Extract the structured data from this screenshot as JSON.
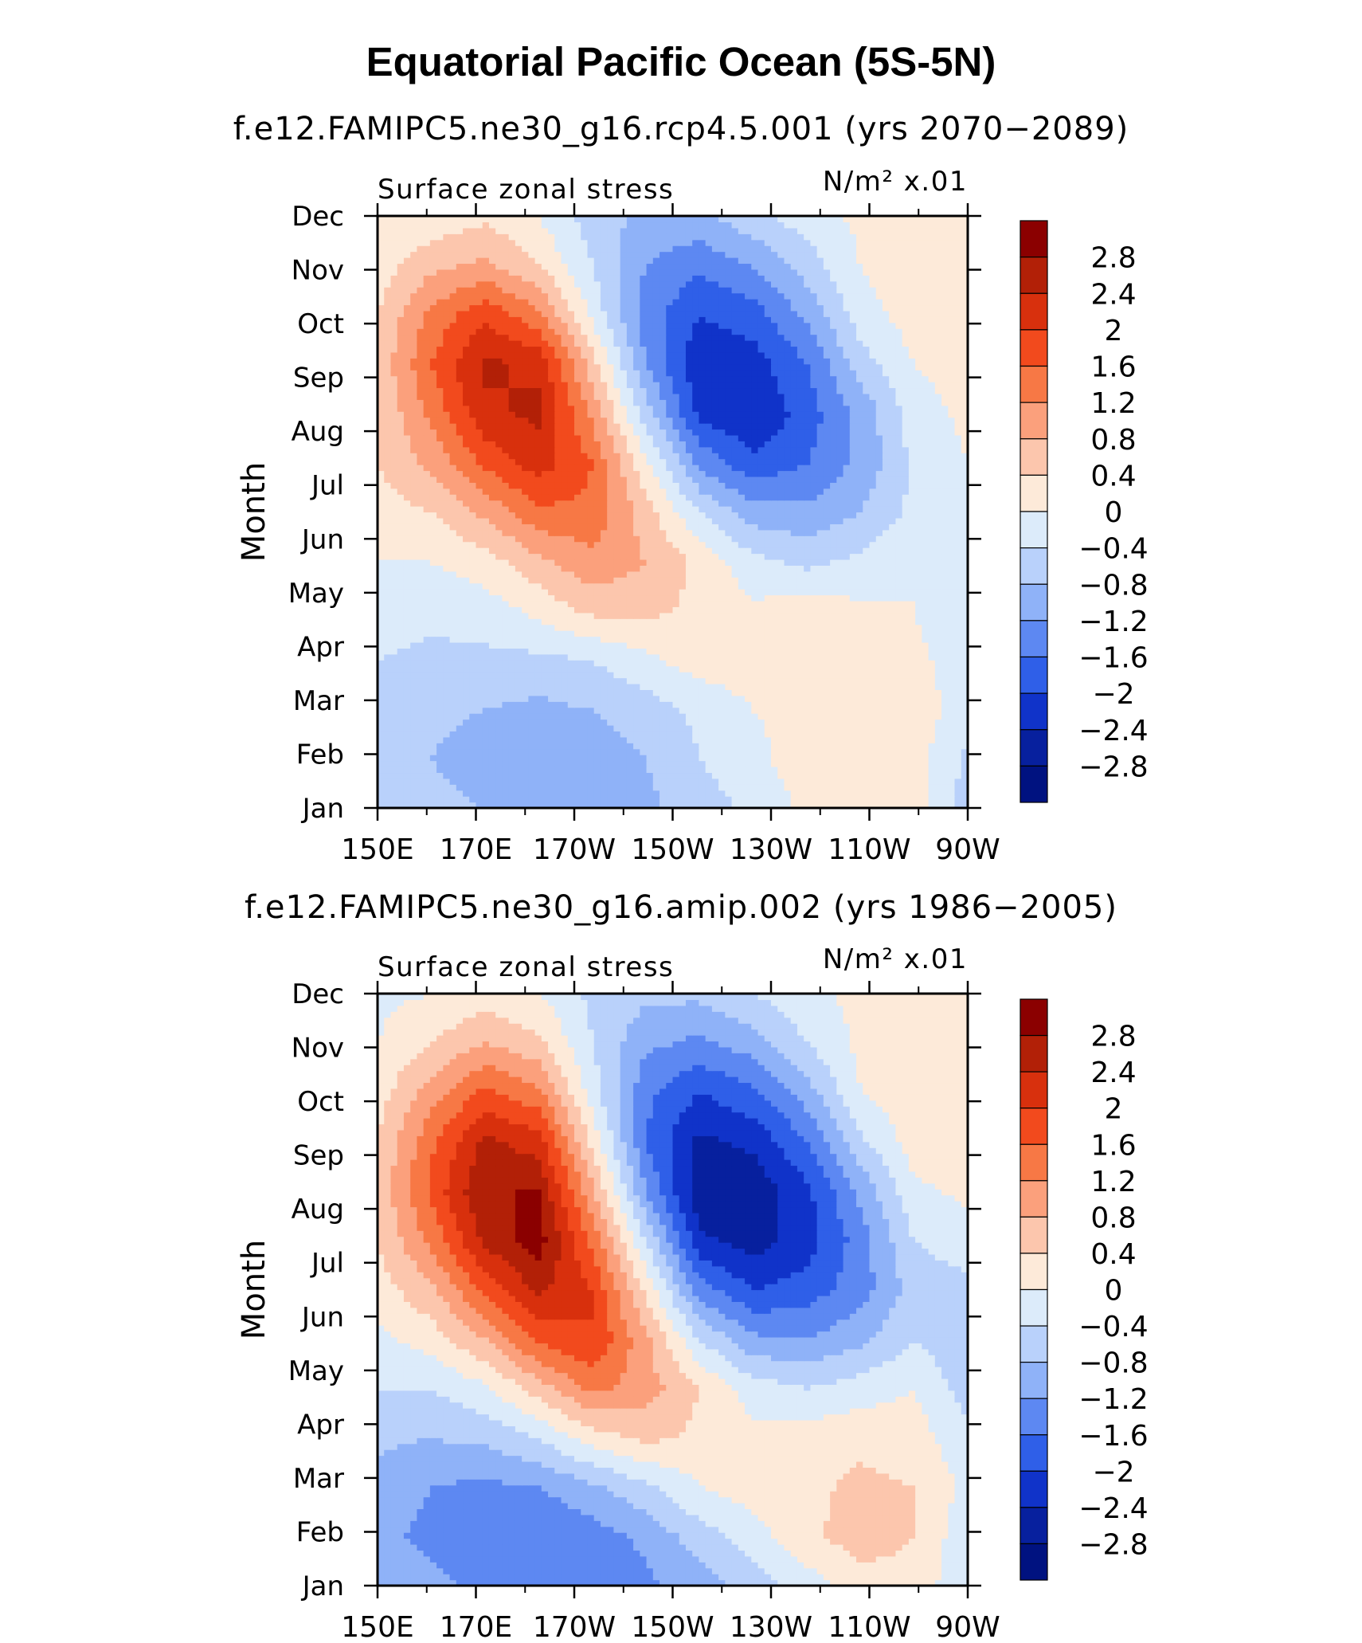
{
  "figure": {
    "title": "Equatorial Pacific Ocean (5S-5N)"
  },
  "chart_data": [
    {
      "type": "heatmap",
      "title": "f.e12.FAMIPC5.ne30_g16.rcp4.5.001 (yrs 2070−2089)",
      "left_label": "Surface zonal stress",
      "right_label": "N/m² x.01",
      "xlabel": "",
      "ylabel": "Month",
      "x": [
        "150E",
        "170E",
        "170W",
        "150W",
        "130W",
        "110W",
        "90W"
      ],
      "y": [
        "Jan",
        "Feb",
        "Mar",
        "Apr",
        "May",
        "Jun",
        "Jul",
        "Aug",
        "Sep",
        "Oct",
        "Nov",
        "Dec"
      ],
      "grid": false,
      "colorbar_ticks": [
        "2.8",
        "2.4",
        "2",
        "1.6",
        "1.2",
        "0.8",
        "0.4",
        "0",
        "−0.4",
        "−0.8",
        "−1.2",
        "−1.6",
        "−2",
        "−2.4",
        "−2.8"
      ],
      "colorbar_colors": [
        "#8b0000",
        "#b22007",
        "#d8300d",
        "#f24a1d",
        "#f77845",
        "#fba07c",
        "#fcc6ad",
        "#fdead9",
        "#dcebfa",
        "#b9d1fb",
        "#8fb2f8",
        "#5d88f2",
        "#2f5fe8",
        "#1033c9",
        "#07209e",
        "#001280"
      ],
      "values": [
        [
          -0.5,
          -0.7,
          -0.8,
          -1.0,
          -1.2,
          -0.9,
          -0.6,
          -0.3,
          0.1,
          0.4,
          0.2,
          -0.6
        ],
        [
          -0.6,
          -0.8,
          -1.0,
          -1.1,
          -1.0,
          -0.8,
          -0.4,
          -0.1,
          0.2,
          0.4,
          0.2,
          -0.5
        ],
        [
          -0.6,
          -0.7,
          -0.8,
          -0.9,
          -0.8,
          -0.6,
          -0.3,
          0.0,
          0.1,
          0.3,
          0.2,
          -0.2
        ],
        [
          -0.4,
          -0.5,
          -0.5,
          -0.5,
          -0.4,
          -0.1,
          0.2,
          0.2,
          0.0,
          0.1,
          0.1,
          -0.2
        ],
        [
          -0.2,
          -0.3,
          -0.2,
          0.1,
          0.5,
          0.5,
          0.3,
          0.1,
          0.2,
          0.1,
          0.0,
          -0.3
        ],
        [
          0.0,
          0.0,
          0.2,
          0.7,
          1.1,
          0.8,
          0.3,
          -0.3,
          -0.5,
          -0.3,
          0.0,
          -0.3
        ],
        [
          0.2,
          0.4,
          0.9,
          1.5,
          1.5,
          0.6,
          -0.4,
          -1.0,
          -1.1,
          -0.8,
          -0.3,
          -0.2
        ],
        [
          0.4,
          0.9,
          1.7,
          2.2,
          1.6,
          0.1,
          -1.3,
          -1.9,
          -1.6,
          -1.1,
          -0.3,
          0.0
        ],
        [
          0.4,
          1.3,
          2.3,
          2.5,
          1.1,
          -0.6,
          -2.1,
          -2.4,
          -1.8,
          -1.1,
          -0.2,
          0.1
        ],
        [
          0.5,
          1.6,
          2.5,
          2.3,
          0.6,
          -1.2,
          -2.3,
          -2.2,
          -1.6,
          -0.6,
          0.0,
          0.2
        ],
        [
          0.4,
          1.3,
          1.9,
          1.3,
          -0.1,
          -1.4,
          -2.0,
          -1.8,
          -1.1,
          -0.2,
          0.2,
          0.4
        ],
        [
          0.2,
          0.7,
          0.9,
          0.4,
          -0.4,
          -1.2,
          -1.5,
          -1.2,
          -0.6,
          0.0,
          0.3,
          0.4
        ],
        [
          0.0,
          0.1,
          0.3,
          0.0,
          -0.6,
          -0.9,
          -0.9,
          -0.5,
          -0.2,
          0.1,
          0.3,
          0.3
        ]
      ]
    },
    {
      "type": "heatmap",
      "title": "f.e12.FAMIPC5.ne30_g16.amip.002 (yrs 1986−2005)",
      "left_label": "Surface zonal stress",
      "right_label": "N/m² x.01",
      "xlabel": "",
      "ylabel": "Month",
      "x": [
        "150E",
        "170E",
        "170W",
        "150W",
        "130W",
        "110W",
        "90W"
      ],
      "y": [
        "Jan",
        "Feb",
        "Mar",
        "Apr",
        "May",
        "Jun",
        "Jul",
        "Aug",
        "Sep",
        "Oct",
        "Nov",
        "Dec"
      ],
      "grid": false,
      "colorbar_ticks": [
        "2.8",
        "2.4",
        "2",
        "1.6",
        "1.2",
        "0.8",
        "0.4",
        "0",
        "−0.4",
        "−0.8",
        "−1.2",
        "−1.6",
        "−2",
        "−2.4",
        "−2.8"
      ],
      "colorbar_colors": [
        "#8b0000",
        "#b22007",
        "#d8300d",
        "#f24a1d",
        "#f77845",
        "#fba07c",
        "#fcc6ad",
        "#fdead9",
        "#dcebfa",
        "#b9d1fb",
        "#8fb2f8",
        "#5d88f2",
        "#2f5fe8",
        "#1033c9",
        "#07209e",
        "#001280"
      ],
      "values": [
        [
          -1.0,
          -1.1,
          -1.3,
          -1.5,
          -1.6,
          -1.3,
          -1.0,
          -0.6,
          -0.2,
          0.2,
          0.3,
          -0.4
        ],
        [
          -1.1,
          -1.3,
          -1.5,
          -1.6,
          -1.4,
          -1.1,
          -0.6,
          -0.2,
          0.3,
          0.6,
          0.4,
          -0.3
        ],
        [
          -1.0,
          -1.2,
          -1.3,
          -1.2,
          -0.9,
          -0.5,
          0.0,
          0.2,
          0.3,
          0.5,
          0.4,
          -0.1
        ],
        [
          -0.7,
          -0.8,
          -0.7,
          -0.4,
          0.2,
          0.5,
          0.3,
          0.1,
          0.2,
          0.3,
          0.2,
          -0.3
        ],
        [
          -0.4,
          -0.4,
          -0.1,
          0.6,
          1.3,
          1.0,
          0.4,
          -0.2,
          -0.4,
          -0.2,
          0.0,
          -0.6
        ],
        [
          -0.1,
          0.2,
          0.8,
          1.7,
          2.0,
          0.9,
          -0.4,
          -1.1,
          -1.2,
          -0.9,
          -0.4,
          -0.7
        ],
        [
          0.2,
          0.7,
          1.7,
          2.5,
          2.0,
          0.3,
          -1.4,
          -2.0,
          -1.8,
          -1.4,
          -0.6,
          -0.5
        ],
        [
          0.4,
          1.3,
          2.5,
          3.0,
          1.5,
          -0.4,
          -2.3,
          -2.6,
          -2.2,
          -1.4,
          -0.4,
          -0.2
        ],
        [
          0.5,
          1.7,
          2.8,
          2.8,
          0.9,
          -1.2,
          -2.7,
          -2.7,
          -2.1,
          -1.1,
          -0.1,
          0.1
        ],
        [
          0.4,
          1.5,
          2.5,
          2.2,
          0.3,
          -1.6,
          -2.5,
          -2.3,
          -1.6,
          -0.5,
          0.2,
          0.3
        ],
        [
          0.2,
          1.0,
          1.7,
          1.3,
          -0.2,
          -1.5,
          -2.0,
          -1.7,
          -1.0,
          0.0,
          0.3,
          0.4
        ],
        [
          0.0,
          0.4,
          0.8,
          0.5,
          -0.4,
          -1.1,
          -1.3,
          -1.0,
          -0.4,
          0.1,
          0.3,
          0.3
        ],
        [
          -0.1,
          0.0,
          0.2,
          0.0,
          -0.5,
          -0.7,
          -0.7,
          -0.4,
          -0.1,
          0.1,
          0.2,
          0.2
        ]
      ]
    }
  ]
}
